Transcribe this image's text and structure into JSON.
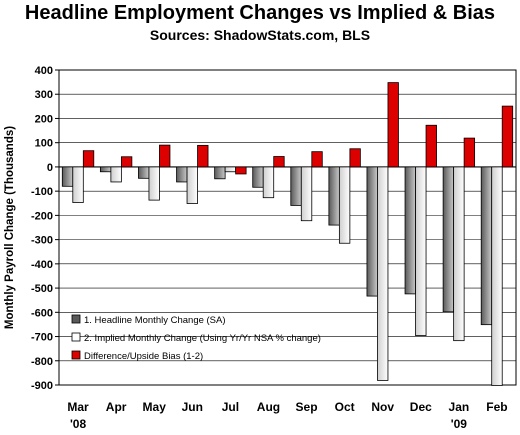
{
  "title": "Headline Employment Changes vs Implied & Bias",
  "subtitle": "Sources: ShadowStats.com, BLS",
  "colors": {
    "series1_dark": "#5a5a5a",
    "series1_light": "#c8c8c8",
    "series2_dark": "#cfcfcf",
    "series2_light": "#ffffff",
    "series3": "#dd0000",
    "plot_bg": "#ffffff",
    "grid": "#000000"
  },
  "chart_data": {
    "type": "bar",
    "ylabel": "Monthly Payroll Change (Thousands)",
    "ylim": [
      -900,
      400
    ],
    "yticks": [
      400,
      300,
      200,
      100,
      0,
      -100,
      -200,
      -300,
      -400,
      -500,
      -600,
      -700,
      -800,
      -900
    ],
    "grid": true,
    "legend_position": "bottom-left",
    "categories": [
      "Mar",
      "Apr",
      "May",
      "Jun",
      "Jul",
      "Aug",
      "Sep",
      "Oct",
      "Nov",
      "Dec",
      "Jan",
      "Feb"
    ],
    "category_sublabels": [
      "'08",
      "",
      "",
      "",
      "",
      "",
      "",
      "",
      "",
      "",
      "'09",
      ""
    ],
    "series": [
      {
        "name": "1. Headline Monthly Change (SA)",
        "values": [
          -80,
          -20,
          -47,
          -62,
          -49,
          -84,
          -159,
          -240,
          -533,
          -524,
          -598,
          -651
        ]
      },
      {
        "name": "2. Implied Monthly Change (Using Yr/Yr NSA % change)",
        "values": [
          -147,
          -62,
          -137,
          -151,
          -20,
          -127,
          -222,
          -315,
          -881,
          -696,
          -717,
          -902
        ]
      },
      {
        "name": "Difference/Upside Bias (1-2)",
        "values": [
          67,
          42,
          90,
          89,
          -29,
          43,
          63,
          75,
          348,
          172,
          119,
          251
        ]
      }
    ]
  }
}
